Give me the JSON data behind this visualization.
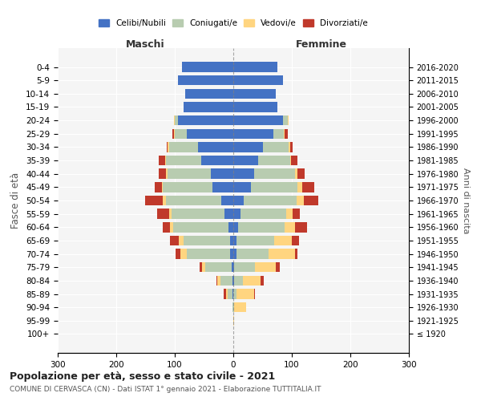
{
  "age_groups": [
    "100+",
    "95-99",
    "90-94",
    "85-89",
    "80-84",
    "75-79",
    "70-74",
    "65-69",
    "60-64",
    "55-59",
    "50-54",
    "45-49",
    "40-44",
    "35-39",
    "30-34",
    "25-29",
    "20-24",
    "15-19",
    "10-14",
    "5-9",
    "0-4"
  ],
  "birth_years": [
    "≤ 1920",
    "1921-1925",
    "1926-1930",
    "1931-1935",
    "1936-1940",
    "1941-1945",
    "1946-1950",
    "1951-1955",
    "1956-1960",
    "1961-1965",
    "1966-1970",
    "1971-1975",
    "1976-1980",
    "1981-1985",
    "1986-1990",
    "1991-1995",
    "1996-2000",
    "2001-2005",
    "2006-2010",
    "2011-2015",
    "2016-2020"
  ],
  "maschi": {
    "celibi": [
      0,
      0,
      0,
      2,
      2,
      3,
      5,
      5,
      8,
      15,
      20,
      35,
      38,
      55,
      60,
      80,
      95,
      85,
      82,
      95,
      88
    ],
    "coniugati": [
      0,
      0,
      2,
      8,
      20,
      45,
      75,
      80,
      95,
      90,
      95,
      85,
      75,
      60,
      50,
      20,
      5,
      0,
      0,
      0,
      0
    ],
    "vedovi": [
      0,
      0,
      0,
      2,
      5,
      5,
      10,
      8,
      5,
      5,
      5,
      2,
      2,
      2,
      2,
      2,
      2,
      0,
      0,
      0,
      0
    ],
    "divorziati": [
      0,
      0,
      0,
      5,
      2,
      5,
      8,
      15,
      12,
      20,
      30,
      12,
      12,
      10,
      2,
      2,
      0,
      0,
      0,
      0,
      0
    ]
  },
  "femmine": {
    "nubili": [
      0,
      0,
      0,
      0,
      2,
      2,
      5,
      5,
      8,
      12,
      18,
      30,
      35,
      42,
      50,
      68,
      85,
      75,
      72,
      85,
      75
    ],
    "coniugate": [
      0,
      0,
      2,
      5,
      15,
      35,
      55,
      65,
      80,
      78,
      90,
      80,
      70,
      55,
      45,
      18,
      8,
      0,
      0,
      0,
      0
    ],
    "vedove": [
      0,
      2,
      20,
      30,
      30,
      35,
      45,
      30,
      18,
      12,
      12,
      8,
      5,
      2,
      2,
      2,
      2,
      0,
      0,
      0,
      0
    ],
    "divorziate": [
      0,
      0,
      0,
      2,
      5,
      8,
      5,
      12,
      20,
      12,
      25,
      20,
      12,
      10,
      5,
      5,
      0,
      0,
      0,
      0,
      0
    ]
  },
  "colors": {
    "celibi_nubili": "#4472C4",
    "coniugati": "#B8CCB0",
    "vedovi": "#FFD580",
    "divorziati": "#C0392B"
  },
  "xlim": 300,
  "title": "Popolazione per età, sesso e stato civile - 2021",
  "subtitle": "COMUNE DI CERVASCA (CN) - Dati ISTAT 1° gennaio 2021 - Elaborazione TUTTITALIA.IT",
  "xlabel_maschi": "Maschi",
  "xlabel_femmine": "Femmine",
  "ylabel_left": "Fasce di età",
  "ylabel_right": "Anni di nascita",
  "bg_color": "#f5f5f5"
}
